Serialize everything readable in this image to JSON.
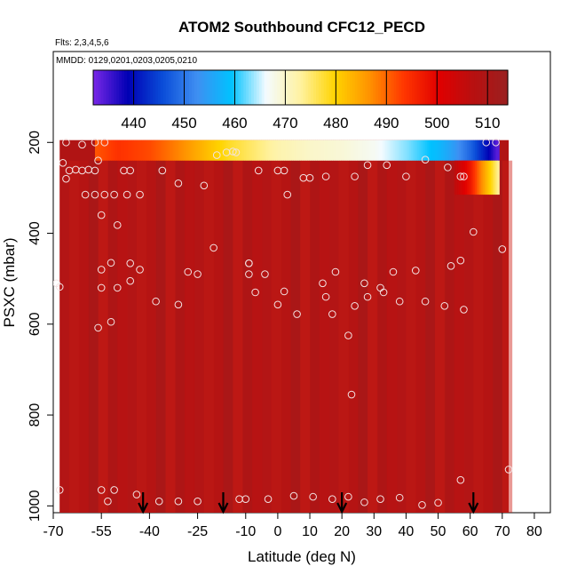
{
  "chart_data": {
    "type": "heatmap",
    "title": "ATOM2 Southbound CFC12_PECD",
    "subtitle_flights": "Flts: 2,3,4,5,6",
    "subtitle_dates": "MMDD: 0129,0201,0203,0205,0210",
    "xlabel": "Latitude (deg N)",
    "ylabel": "PSXC (mbar)",
    "xlim": [
      -70,
      85
    ],
    "ylim": [
      1015,
      0
    ],
    "x_ticks": [
      -70,
      -55,
      -40,
      -25,
      -10,
      0,
      10,
      20,
      30,
      40,
      50,
      60,
      70,
      80
    ],
    "x_tick_labels": [
      "-70",
      "-55",
      "-40",
      "-25",
      "-10",
      "0",
      "10",
      "20",
      "30",
      "40",
      "50",
      "60",
      "70",
      "80"
    ],
    "y_ticks": [
      200,
      400,
      600,
      800,
      1000
    ],
    "y_tick_labels": [
      "200",
      "400",
      "600",
      "800",
      "1000"
    ],
    "colorbar": {
      "range": [
        432,
        514
      ],
      "ticks": [
        440,
        450,
        460,
        470,
        480,
        490,
        500,
        510
      ],
      "tick_labels": [
        "440",
        "450",
        "460",
        "470",
        "480",
        "490",
        "500",
        "510"
      ],
      "colors": [
        "#7a28e8",
        "#0000b4",
        "#0a4cd8",
        "#3f8ef2",
        "#00c2ff",
        "#f4fbff",
        "#fff2a0",
        "#ffd400",
        "#ff9200",
        "#ff3600",
        "#e00000",
        "#b81010",
        "#9a2020"
      ]
    },
    "field": {
      "lat_min": -68,
      "lat_max": 72,
      "p_top": 195,
      "p_bottom": 1015,
      "background_value": 509,
      "top_band": {
        "p_top": 195,
        "p_bottom": 240,
        "lat": [
          -60,
          -50,
          -40,
          -30,
          -22,
          -15,
          -10,
          -5,
          0,
          10,
          20,
          30,
          40,
          50,
          55,
          60,
          65,
          68
        ],
        "value": [
          490,
          494,
          492,
          487,
          482,
          478,
          476,
          474,
          472,
          470,
          469,
          467,
          463,
          458,
          454,
          448,
          440,
          434
        ]
      },
      "high_lat_patch": {
        "lat_start": 55,
        "lat_end": 69,
        "p_top": 240,
        "p_bottom": 315,
        "lat": [
          55,
          60,
          63,
          66,
          69
        ],
        "value": [
          506,
          497,
          488,
          480,
          472
        ]
      }
    },
    "observations": [
      {
        "lat": -66,
        "p": 200
      },
      {
        "lat": -61,
        "p": 205
      },
      {
        "lat": -57,
        "p": 200
      },
      {
        "lat": -54,
        "p": 200
      },
      {
        "lat": -67,
        "p": 245
      },
      {
        "lat": -65,
        "p": 262
      },
      {
        "lat": -63,
        "p": 260
      },
      {
        "lat": -61,
        "p": 262
      },
      {
        "lat": -59,
        "p": 260
      },
      {
        "lat": -57,
        "p": 262
      },
      {
        "lat": -66,
        "p": 280
      },
      {
        "lat": -56,
        "p": 240
      },
      {
        "lat": -48,
        "p": 262
      },
      {
        "lat": -46,
        "p": 262
      },
      {
        "lat": -36,
        "p": 262
      },
      {
        "lat": -31,
        "p": 290
      },
      {
        "lat": -23,
        "p": 295
      },
      {
        "lat": -19,
        "p": 228
      },
      {
        "lat": -16,
        "p": 222
      },
      {
        "lat": -14,
        "p": 220
      },
      {
        "lat": -13,
        "p": 222
      },
      {
        "lat": -6,
        "p": 262
      },
      {
        "lat": 0,
        "p": 262
      },
      {
        "lat": 2,
        "p": 262
      },
      {
        "lat": 3,
        "p": 315
      },
      {
        "lat": 8,
        "p": 278
      },
      {
        "lat": 10,
        "p": 278
      },
      {
        "lat": 15,
        "p": 275
      },
      {
        "lat": 24,
        "p": 275
      },
      {
        "lat": 28,
        "p": 250
      },
      {
        "lat": 34,
        "p": 250
      },
      {
        "lat": 40,
        "p": 275
      },
      {
        "lat": 46,
        "p": 238
      },
      {
        "lat": 53,
        "p": 255
      },
      {
        "lat": 57,
        "p": 275
      },
      {
        "lat": 58,
        "p": 275
      },
      {
        "lat": 65,
        "p": 200
      },
      {
        "lat": 68,
        "p": 200
      },
      {
        "lat": -57,
        "p": 315
      },
      {
        "lat": -54,
        "p": 315
      },
      {
        "lat": -51,
        "p": 315
      },
      {
        "lat": -47,
        "p": 315
      },
      {
        "lat": -43,
        "p": 315
      },
      {
        "lat": -60,
        "p": 315
      },
      {
        "lat": -55,
        "p": 360
      },
      {
        "lat": -50,
        "p": 382
      },
      {
        "lat": 61,
        "p": 397
      },
      {
        "lat": 70,
        "p": 435
      },
      {
        "lat": -20,
        "p": 432
      },
      {
        "lat": -52,
        "p": 465
      },
      {
        "lat": -46,
        "p": 466
      },
      {
        "lat": -55,
        "p": 480
      },
      {
        "lat": -43,
        "p": 480
      },
      {
        "lat": -28,
        "p": 485
      },
      {
        "lat": -25,
        "p": 490
      },
      {
        "lat": -9,
        "p": 466
      },
      {
        "lat": -9,
        "p": 466
      },
      {
        "lat": -9,
        "p": 490
      },
      {
        "lat": -4,
        "p": 490
      },
      {
        "lat": 18,
        "p": 485
      },
      {
        "lat": 36,
        "p": 485
      },
      {
        "lat": 43,
        "p": 482
      },
      {
        "lat": 54,
        "p": 472
      },
      {
        "lat": 57,
        "p": 460
      },
      {
        "lat": -69,
        "p": 510
      },
      {
        "lat": -68,
        "p": 518
      },
      {
        "lat": -55,
        "p": 520
      },
      {
        "lat": -50,
        "p": 520
      },
      {
        "lat": -46,
        "p": 505
      },
      {
        "lat": -7,
        "p": 530
      },
      {
        "lat": 2,
        "p": 528
      },
      {
        "lat": 14,
        "p": 510
      },
      {
        "lat": 15,
        "p": 540
      },
      {
        "lat": 27,
        "p": 510
      },
      {
        "lat": 28,
        "p": 540
      },
      {
        "lat": 32,
        "p": 520
      },
      {
        "lat": 33,
        "p": 530
      },
      {
        "lat": -38,
        "p": 550
      },
      {
        "lat": -31,
        "p": 557
      },
      {
        "lat": 0,
        "p": 557
      },
      {
        "lat": 6,
        "p": 578
      },
      {
        "lat": 17,
        "p": 578
      },
      {
        "lat": 24,
        "p": 560
      },
      {
        "lat": 38,
        "p": 550
      },
      {
        "lat": 46,
        "p": 550
      },
      {
        "lat": 52,
        "p": 560
      },
      {
        "lat": 58,
        "p": 568
      },
      {
        "lat": -56,
        "p": 608
      },
      {
        "lat": -52,
        "p": 595
      },
      {
        "lat": 22,
        "p": 625
      },
      {
        "lat": 23,
        "p": 755
      },
      {
        "lat": 72,
        "p": 920
      },
      {
        "lat": 57,
        "p": 943
      },
      {
        "lat": -68,
        "p": 965
      },
      {
        "lat": -55,
        "p": 965
      },
      {
        "lat": -51,
        "p": 965
      },
      {
        "lat": -53,
        "p": 990
      },
      {
        "lat": -44,
        "p": 975
      },
      {
        "lat": -37,
        "p": 990
      },
      {
        "lat": -31,
        "p": 990
      },
      {
        "lat": -25,
        "p": 990
      },
      {
        "lat": -12,
        "p": 985
      },
      {
        "lat": -10,
        "p": 985
      },
      {
        "lat": -3,
        "p": 985
      },
      {
        "lat": 5,
        "p": 978
      },
      {
        "lat": 11,
        "p": 980
      },
      {
        "lat": 17,
        "p": 985
      },
      {
        "lat": 22,
        "p": 980
      },
      {
        "lat": 27,
        "p": 992
      },
      {
        "lat": 32,
        "p": 985
      },
      {
        "lat": 38,
        "p": 982
      },
      {
        "lat": 45,
        "p": 998
      },
      {
        "lat": 50,
        "p": 993
      }
    ],
    "arrow_latitudes": [
      -42,
      -17,
      20,
      61
    ]
  }
}
